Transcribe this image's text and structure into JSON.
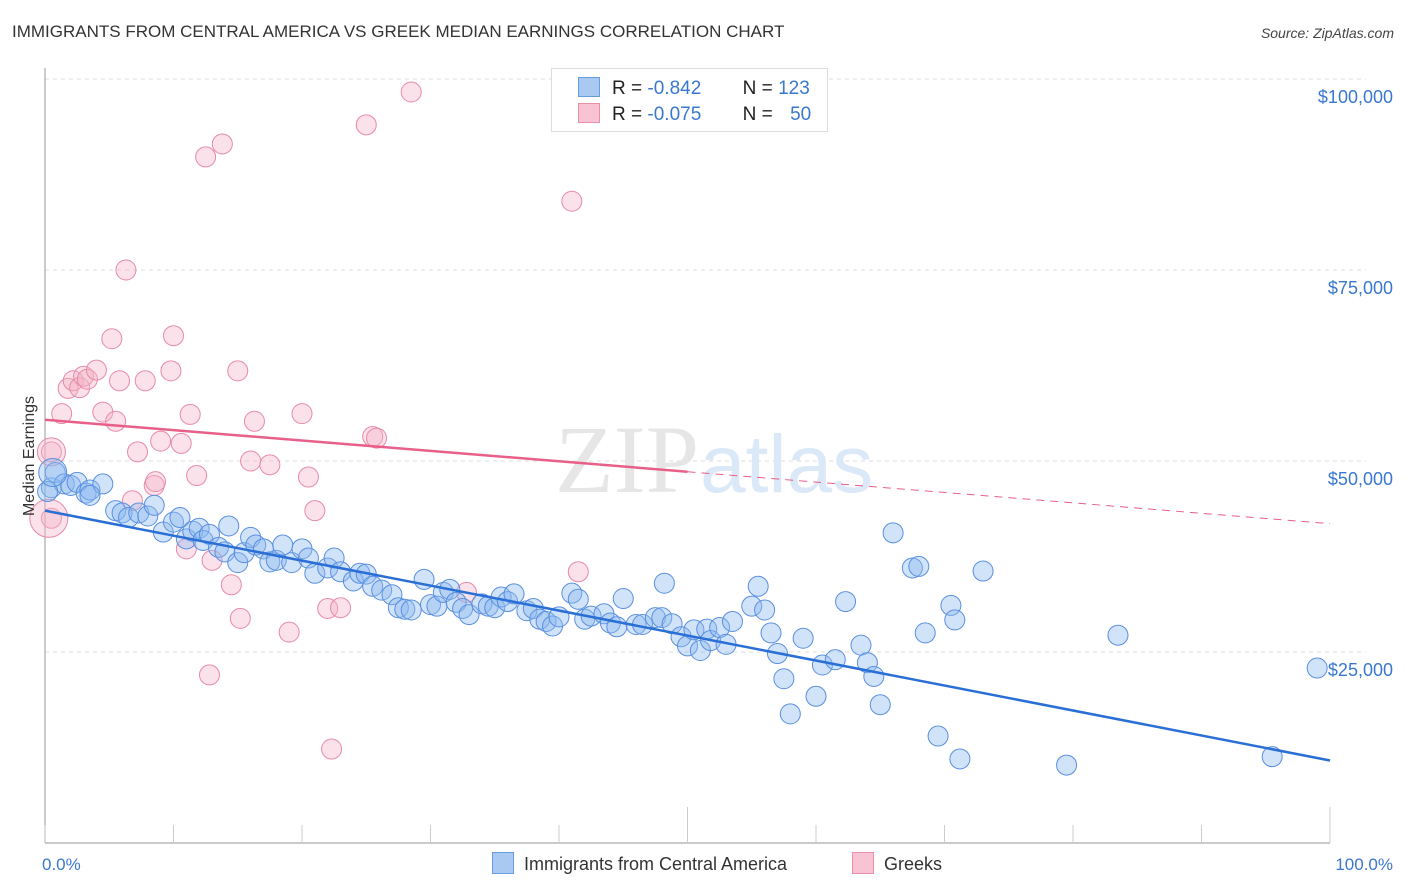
{
  "title": "IMMIGRANTS FROM CENTRAL AMERICA VS GREEK MEDIAN EARNINGS CORRELATION CHART",
  "source": "Source: ZipAtlas.com",
  "watermark": {
    "zip": "ZIP",
    "atlas": "atlas"
  },
  "legend_stats": [
    {
      "r_label": "R =",
      "r_value": "-0.842",
      "n_label": "N =",
      "n_value": "123",
      "color": "#a9c8f2",
      "border": "#6a9de0"
    },
    {
      "r_label": "R =",
      "r_value": "-0.075",
      "n_label": "N =",
      "n_value": "50",
      "color": "#f8c3d2",
      "border": "#ea8fab"
    }
  ],
  "bottom_legend": [
    {
      "label": "Immigrants from Central America",
      "color": "#a9c8f2",
      "border": "#6a9de0"
    },
    {
      "label": "Greeks",
      "color": "#f8c3d2",
      "border": "#ea8fab"
    }
  ],
  "colors": {
    "blue": "#2a6fd6",
    "blue_fill": "rgba(140,184,240,0.4)",
    "blue_stroke": "#5a8fe0",
    "pink": "#e8608a",
    "pink_fill": "rgba(246,180,200,0.4)",
    "pink_stroke": "#e78aa8",
    "tick_text": "#3a78d0"
  },
  "chart_data": {
    "type": "scatter",
    "title": "IMMIGRANTS FROM CENTRAL AMERICA VS GREEK MEDIAN EARNINGS CORRELATION CHART",
    "xlabel": "",
    "ylabel": "Median Earnings",
    "xlim": [
      0,
      100
    ],
    "ylim": [
      0,
      105000
    ],
    "x_tick_labels": [
      "0.0%",
      "100.0%"
    ],
    "y_ticks": [
      25000,
      50000,
      75000,
      100000
    ],
    "y_tick_labels": [
      "$25,000",
      "$50,000",
      "$75,000",
      "$100,000"
    ],
    "grid": "horizontal dashed",
    "legend": "top-center and bottom",
    "series": [
      {
        "name": "Immigrants from Central America",
        "r": -0.842,
        "n": 123,
        "trend": {
          "x": [
            0,
            100
          ],
          "y": [
            43500,
            10800
          ],
          "style": "solid"
        },
        "points": [
          [
            0.5,
            46500
          ],
          [
            0.8,
            48500
          ],
          [
            1.5,
            47000
          ],
          [
            2,
            46800
          ],
          [
            2.5,
            47200
          ],
          [
            3.2,
            45800
          ],
          [
            3.5,
            46200
          ],
          [
            4.5,
            47000
          ],
          [
            3.5,
            45500
          ],
          [
            5.5,
            43500
          ],
          [
            6,
            43200
          ],
          [
            6.5,
            42600
          ],
          [
            7.3,
            43200
          ],
          [
            8,
            42800
          ],
          [
            8.5,
            44200
          ],
          [
            9.2,
            40700
          ],
          [
            10,
            42000
          ],
          [
            10.5,
            42600
          ],
          [
            11,
            39800
          ],
          [
            11.5,
            40800
          ],
          [
            12,
            41200
          ],
          [
            12.3,
            39600
          ],
          [
            12.8,
            40400
          ],
          [
            13.5,
            38700
          ],
          [
            14,
            38100
          ],
          [
            14.3,
            41500
          ],
          [
            15,
            36700
          ],
          [
            15.5,
            38000
          ],
          [
            16,
            40000
          ],
          [
            16.4,
            39000
          ],
          [
            17,
            38500
          ],
          [
            17.5,
            36800
          ],
          [
            18,
            37000
          ],
          [
            18.5,
            39000
          ],
          [
            19.2,
            36700
          ],
          [
            20,
            38500
          ],
          [
            20.5,
            37300
          ],
          [
            21,
            35300
          ],
          [
            22,
            36000
          ],
          [
            22.5,
            37300
          ],
          [
            23,
            35500
          ],
          [
            24,
            34300
          ],
          [
            24.5,
            35300
          ],
          [
            25,
            35200
          ],
          [
            25.5,
            33600
          ],
          [
            26.2,
            33100
          ],
          [
            27,
            32500
          ],
          [
            27.5,
            30800
          ],
          [
            28,
            30600
          ],
          [
            28.5,
            30500
          ],
          [
            29.5,
            34500
          ],
          [
            30,
            31200
          ],
          [
            30.5,
            31000
          ],
          [
            31,
            32800
          ],
          [
            31.5,
            33200
          ],
          [
            32,
            31500
          ],
          [
            32.5,
            30700
          ],
          [
            33,
            29900
          ],
          [
            34,
            31300
          ],
          [
            34.5,
            31000
          ],
          [
            35,
            30800
          ],
          [
            35.5,
            32200
          ],
          [
            36,
            31600
          ],
          [
            36.5,
            32600
          ],
          [
            37.5,
            30400
          ],
          [
            38,
            30700
          ],
          [
            38.5,
            29300
          ],
          [
            39,
            29000
          ],
          [
            39.5,
            28400
          ],
          [
            40,
            29600
          ],
          [
            41,
            32700
          ],
          [
            41.5,
            31900
          ],
          [
            42,
            29300
          ],
          [
            42.5,
            29700
          ],
          [
            43.5,
            30000
          ],
          [
            44,
            28800
          ],
          [
            44.5,
            28300
          ],
          [
            45,
            32000
          ],
          [
            46,
            28600
          ],
          [
            46.5,
            28600
          ],
          [
            47.5,
            29500
          ],
          [
            48,
            29500
          ],
          [
            48.2,
            34000
          ],
          [
            48.8,
            28700
          ],
          [
            49.5,
            27000
          ],
          [
            50,
            25800
          ],
          [
            50.5,
            27900
          ],
          [
            51,
            25200
          ],
          [
            51.5,
            28000
          ],
          [
            51.8,
            26500
          ],
          [
            52.5,
            28200
          ],
          [
            53,
            26000
          ],
          [
            53.5,
            29000
          ],
          [
            55,
            31000
          ],
          [
            55.5,
            33600
          ],
          [
            56,
            30500
          ],
          [
            56.5,
            27500
          ],
          [
            57,
            24800
          ],
          [
            57.5,
            21500
          ],
          [
            58,
            16900
          ],
          [
            59,
            26800
          ],
          [
            60,
            19200
          ],
          [
            60.5,
            23300
          ],
          [
            61.5,
            24000
          ],
          [
            62.3,
            31600
          ],
          [
            63.5,
            25900
          ],
          [
            64,
            23600
          ],
          [
            64.5,
            21800
          ],
          [
            65,
            18100
          ],
          [
            66,
            40600
          ],
          [
            67.5,
            36000
          ],
          [
            68,
            36200
          ],
          [
            68.5,
            27500
          ],
          [
            69.5,
            14000
          ],
          [
            70.5,
            31100
          ],
          [
            70.8,
            29200
          ],
          [
            71.2,
            11000
          ],
          [
            73,
            35600
          ],
          [
            79.5,
            10200
          ],
          [
            83.5,
            27200
          ],
          [
            95.5,
            11300
          ],
          [
            99,
            22900
          ],
          [
            0.2,
            46000
          ]
        ]
      },
      {
        "name": "Greeks",
        "r": -0.075,
        "n": 50,
        "trend": {
          "x": [
            0,
            50
          ],
          "y": [
            55400,
            48600
          ],
          "style": "solid",
          "dashed_extension": {
            "x": [
              50,
              100
            ],
            "y": [
              48600,
              41800
            ]
          }
        },
        "points": [
          [
            0.5,
            42500
          ],
          [
            0.5,
            51200
          ],
          [
            1.3,
            56200
          ],
          [
            1.8,
            59500
          ],
          [
            2.2,
            60500
          ],
          [
            2.7,
            59600
          ],
          [
            3,
            61100
          ],
          [
            3.3,
            60700
          ],
          [
            4,
            61900
          ],
          [
            4.5,
            56400
          ],
          [
            5.2,
            66000
          ],
          [
            5.5,
            55200
          ],
          [
            5.8,
            60500
          ],
          [
            6.3,
            75000
          ],
          [
            6.8,
            44800
          ],
          [
            7.2,
            51200
          ],
          [
            7.8,
            60500
          ],
          [
            8.5,
            46800
          ],
          [
            8.6,
            47300
          ],
          [
            9,
            52600
          ],
          [
            9.8,
            61800
          ],
          [
            10,
            66400
          ],
          [
            10.6,
            52300
          ],
          [
            11,
            38500
          ],
          [
            11.3,
            56100
          ],
          [
            11.8,
            48100
          ],
          [
            12.5,
            89800
          ],
          [
            12.8,
            22000
          ],
          [
            13,
            37000
          ],
          [
            13.8,
            91500
          ],
          [
            14.5,
            33800
          ],
          [
            15,
            61800
          ],
          [
            15.2,
            29400
          ],
          [
            16,
            50000
          ],
          [
            16.3,
            55200
          ],
          [
            17.5,
            49500
          ],
          [
            19,
            27600
          ],
          [
            20,
            56200
          ],
          [
            20.5,
            47900
          ],
          [
            21,
            43500
          ],
          [
            22,
            30700
          ],
          [
            22.3,
            12300
          ],
          [
            23,
            30800
          ],
          [
            25,
            94000
          ],
          [
            25.5,
            53200
          ],
          [
            25.8,
            53000
          ],
          [
            28.5,
            98300
          ],
          [
            32.8,
            32800
          ],
          [
            41,
            84000
          ],
          [
            41.5,
            35500
          ]
        ]
      }
    ]
  }
}
